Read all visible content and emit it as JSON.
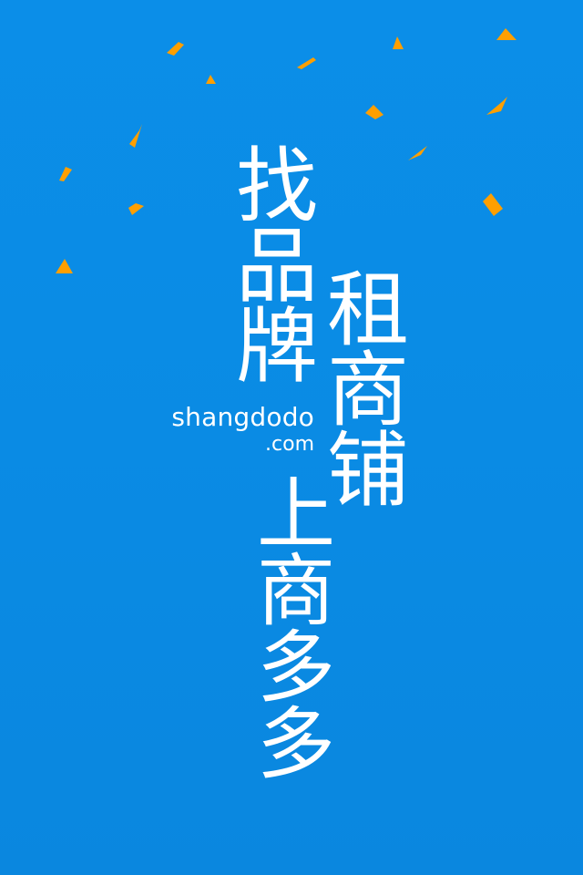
{
  "splash": {
    "background_color": "#0a8ce6",
    "accent_color": "#ff9f00",
    "headline": {
      "left_column": [
        "找",
        "品",
        "牌"
      ],
      "right_column": [
        "租",
        "商",
        "铺"
      ],
      "bottom_column": [
        "上",
        "商",
        "多",
        "多"
      ]
    },
    "domain": {
      "main": "shangdodo",
      "tld": ".com"
    }
  }
}
